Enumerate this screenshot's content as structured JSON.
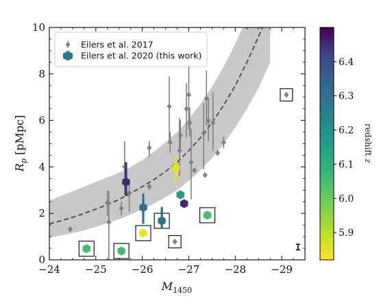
{
  "chart_data": {
    "type": "scatter",
    "xlabel": "M_1450",
    "ylabel": "R_p [pMpc]",
    "xlim": [
      -24,
      -29.5
    ],
    "ylim": [
      0,
      10
    ],
    "x_ticks": [
      -24,
      -25,
      -26,
      -27,
      -28,
      -29
    ],
    "x_tick_labels": [
      "−24",
      "−25",
      "−26",
      "−27",
      "−28",
      "−29"
    ],
    "y_ticks": [
      0,
      2,
      4,
      6,
      8,
      10
    ],
    "y_tick_labels": [
      "0",
      "2",
      "4",
      "6",
      "8",
      "10"
    ],
    "grid": false,
    "legend": {
      "placement": "top-left",
      "entries": [
        {
          "label": "Eilers et al. 2017",
          "marker": "small-gray-diamond"
        },
        {
          "label": "Eilers et al. 2020 (this work)",
          "marker": "large-colored-hexagon"
        }
      ]
    },
    "colorbar": {
      "label": "redshift z",
      "range": [
        5.82,
        6.5
      ],
      "ticks": [
        5.9,
        6.0,
        6.1,
        6.2,
        6.3,
        6.4
      ],
      "tick_labels": [
        "5.9",
        "6.0",
        "6.1",
        "6.2",
        "6.3",
        "6.4"
      ],
      "colormap": "viridis (reversed: yellow at low z, purple at high z)"
    },
    "relation": {
      "type": "dashed-line-with-band",
      "color": "#555555",
      "band_color": "#c8c8c8",
      "x": [
        -24.0,
        -24.25,
        -24.5,
        -24.75,
        -25.0,
        -25.25,
        -25.5,
        -25.75,
        -26.0,
        -26.25,
        -26.5,
        -26.75,
        -27.0,
        -27.25,
        -27.5,
        -27.75,
        -28.0,
        -28.25,
        -28.5,
        -28.75
      ],
      "y": [
        1.55,
        1.68,
        1.83,
        2.0,
        2.18,
        2.38,
        2.6,
        2.86,
        3.15,
        3.45,
        3.8,
        4.2,
        4.7,
        5.25,
        5.9,
        6.65,
        7.5,
        8.5,
        9.6,
        10.8
      ],
      "band_low": [
        0.95,
        1.05,
        1.15,
        1.27,
        1.42,
        1.58,
        1.75,
        1.95,
        2.18,
        2.42,
        2.7,
        3.0,
        3.4,
        3.85,
        4.38,
        4.98,
        5.7,
        6.5,
        7.4,
        8.5
      ],
      "band_high": [
        2.55,
        2.75,
        2.95,
        3.15,
        3.35,
        3.55,
        3.75,
        4.0,
        4.3,
        4.65,
        5.05,
        5.5,
        6.05,
        6.7,
        7.45,
        8.3,
        9.3,
        10.4,
        11.6,
        12.9
      ]
    },
    "series": [
      {
        "name": "Eilers et al. 2017",
        "color": "#808080",
        "points": [
          {
            "x": -24.45,
            "y": 1.32,
            "err": [
              0.12,
              0.12
            ],
            "boxed": false
          },
          {
            "x": -25.25,
            "y": 2.45,
            "err": [
              0.55,
              0.55
            ],
            "boxed": false
          },
          {
            "x": -25.28,
            "y": 1.62,
            "err": [
              1.6,
              1.35
            ],
            "boxed": false
          },
          {
            "x": -25.55,
            "y": 2.22,
            "err": [
              0.3,
              0.3
            ],
            "boxed": false
          },
          {
            "x": -25.62,
            "y": 4.0,
            "err": [
              1.2,
              1.1
            ],
            "boxed": false
          },
          {
            "x": -25.72,
            "y": 2.88,
            "err": [
              0.8,
              0.5
            ],
            "boxed": false
          },
          {
            "x": -26.15,
            "y": 4.82,
            "err": [
              0.4,
              0.3
            ],
            "boxed": false
          },
          {
            "x": -26.15,
            "y": 3.15,
            "err": [
              0.15,
              0.15
            ],
            "boxed": false
          },
          {
            "x": -26.58,
            "y": 6.6,
            "err": [
              1.5,
              1.3
            ],
            "boxed": false
          },
          {
            "x": -26.6,
            "y": 5.05,
            "err": [
              0.45,
              0.45
            ],
            "boxed": false
          },
          {
            "x": -26.8,
            "y": 4.7,
            "err": [
              1.1,
              1.4
            ],
            "boxed": false
          },
          {
            "x": -26.82,
            "y": 5.35,
            "err": [
              0.55,
              0.65
            ],
            "boxed": false
          },
          {
            "x": -26.95,
            "y": 6.5,
            "err": [
              1.25,
              1.1
            ],
            "boxed": false
          },
          {
            "x": -27.0,
            "y": 7.1,
            "err": [
              1.5,
              1.3
            ],
            "boxed": false
          },
          {
            "x": -27.02,
            "y": 5.9,
            "err": [
              0.6,
              0.65
            ],
            "boxed": false
          },
          {
            "x": -27.05,
            "y": 4.2,
            "err": [
              1.6,
              1.45
            ],
            "boxed": false
          },
          {
            "x": -27.12,
            "y": 3.85,
            "err": [
              0.1,
              0.1
            ],
            "boxed": false
          },
          {
            "x": -27.32,
            "y": 5.45,
            "err": [
              1.55,
              1.3
            ],
            "boxed": false
          },
          {
            "x": -27.35,
            "y": 3.65,
            "err": [
              0.1,
              0.1
            ],
            "boxed": false
          },
          {
            "x": -27.38,
            "y": 6.95,
            "err": [
              1.15,
              1.2
            ],
            "boxed": false
          },
          {
            "x": -27.42,
            "y": 6.0,
            "err": [
              0.9,
              0.95
            ],
            "boxed": false
          },
          {
            "x": -27.52,
            "y": 5.9,
            "err": [
              1.2,
              1.3
            ],
            "boxed": false
          },
          {
            "x": -27.62,
            "y": 4.6,
            "err": [
              0.12,
              0.12
            ],
            "boxed": false
          },
          {
            "x": -27.75,
            "y": 5.05,
            "err": [
              0.25,
              0.25
            ],
            "boxed": false
          },
          {
            "x": -26.7,
            "y": 0.78,
            "err": [
              0.12,
              0.12
            ],
            "boxed": true
          },
          {
            "x": -29.1,
            "y": 7.1,
            "err": [
              0.12,
              0.12
            ],
            "boxed": true
          }
        ]
      },
      {
        "name": "Eilers et al. 2020 (this work)",
        "points": [
          {
            "x": -24.8,
            "y": 0.48,
            "z": 6.05,
            "err": [
              0.05,
              0.05
            ],
            "boxed": true
          },
          {
            "x": -25.55,
            "y": 0.38,
            "z": 6.05,
            "err": [
              0.05,
              0.05
            ],
            "boxed": true
          },
          {
            "x": -25.65,
            "y": 3.35,
            "z": 6.45,
            "err": [
              0.6,
              0.85
            ],
            "boxed": false
          },
          {
            "x": -26.02,
            "y": 1.15,
            "z": 5.85,
            "err": [
              0.05,
              0.05
            ],
            "boxed": true
          },
          {
            "x": -26.02,
            "y": 2.25,
            "z": 6.3,
            "err": [
              0.7,
              0.6
            ],
            "boxed": false
          },
          {
            "x": -26.42,
            "y": 1.68,
            "z": 6.3,
            "err": [
              0.35,
              0.6
            ],
            "boxed": true
          },
          {
            "x": -26.72,
            "y": 3.95,
            "z": 5.85,
            "err": [
              0.6,
              0.5
            ],
            "boxed": false
          },
          {
            "x": -26.82,
            "y": 2.8,
            "z": 6.15,
            "err": [
              0.05,
              0.05
            ],
            "boxed": false
          },
          {
            "x": -26.9,
            "y": 2.42,
            "z": 6.45,
            "err": [
              0.05,
              0.05
            ],
            "boxed": false
          },
          {
            "x": -27.4,
            "y": 1.92,
            "z": 6.05,
            "err": [
              0.05,
              0.05
            ],
            "boxed": true
          }
        ]
      }
    ],
    "typical_error_bar": {
      "x": -29.35,
      "y": 0.55,
      "err": 0.12
    }
  },
  "axes": {
    "xlabel_main": "M",
    "xlabel_sub": "1450",
    "ylabel_main": "R",
    "ylabel_sub": "p",
    "ylabel_unit": " [pMpc]"
  },
  "legend": {
    "entry_2017": "Eilers et al. 2017",
    "entry_2020": "Eilers et al. 2020 (this work)"
  },
  "colorbar": {
    "title_text": "redshift ",
    "title_var": "z"
  }
}
